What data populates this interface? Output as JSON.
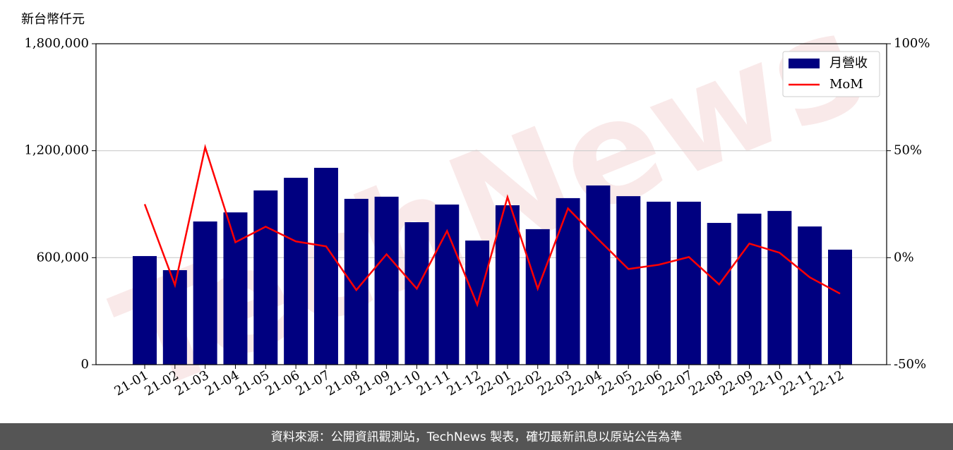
{
  "chart_data": {
    "type": "bar-line",
    "y_label": "新台幣仟元",
    "watermark": "TechNews",
    "source": "資料來源：公開資訊觀測站，TechNews 製表，確切最新訊息以原站公告為準",
    "categories": [
      "21-01",
      "21-02",
      "21-03",
      "21-04",
      "21-05",
      "21-06",
      "21-07",
      "21-08",
      "21-09",
      "21-10",
      "21-11",
      "21-12",
      "22-01",
      "22-02",
      "22-03",
      "22-04",
      "22-05",
      "22-06",
      "22-07",
      "22-08",
      "22-09",
      "22-10",
      "22-11",
      "22-12"
    ],
    "series": [
      {
        "name": "月營收",
        "type": "bar",
        "color": "#000080",
        "values": [
          609000,
          530000,
          803000,
          854000,
          977000,
          1048000,
          1104000,
          930000,
          942000,
          799000,
          898000,
          696000,
          894000,
          760000,
          934000,
          1005000,
          945000,
          914000,
          914000,
          795000,
          847000,
          862000,
          775000,
          645000
        ]
      },
      {
        "name": "MoM",
        "type": "line",
        "color": "#ff0000",
        "axis": "y2",
        "values": [
          25,
          -12.8,
          51.6,
          7.2,
          14.5,
          7.6,
          5.3,
          -15.1,
          1.6,
          -14.5,
          12.5,
          -22,
          28.3,
          -14.5,
          23,
          8.6,
          -5.3,
          -3.3,
          0.3,
          -12.5,
          6.6,
          2.3,
          -9.2,
          -16.8
        ]
      }
    ],
    "ylim": [
      0,
      1800000
    ],
    "yticks": [
      0,
      {
        "value": 600000,
        "label": "600,000"
      },
      {
        "value": 1200000,
        "label": "1,200,000"
      },
      {
        "value": 1800000,
        "label": "1,800,000"
      }
    ],
    "y2lim": [
      -50,
      100
    ],
    "y2ticks": [
      {
        "value": -50,
        "label": "-50%"
      },
      {
        "value": 0,
        "label": "0%"
      },
      {
        "value": 50,
        "label": "50%"
      },
      {
        "value": 100,
        "label": "100%"
      }
    ],
    "grid": true,
    "legend": "upper right"
  }
}
